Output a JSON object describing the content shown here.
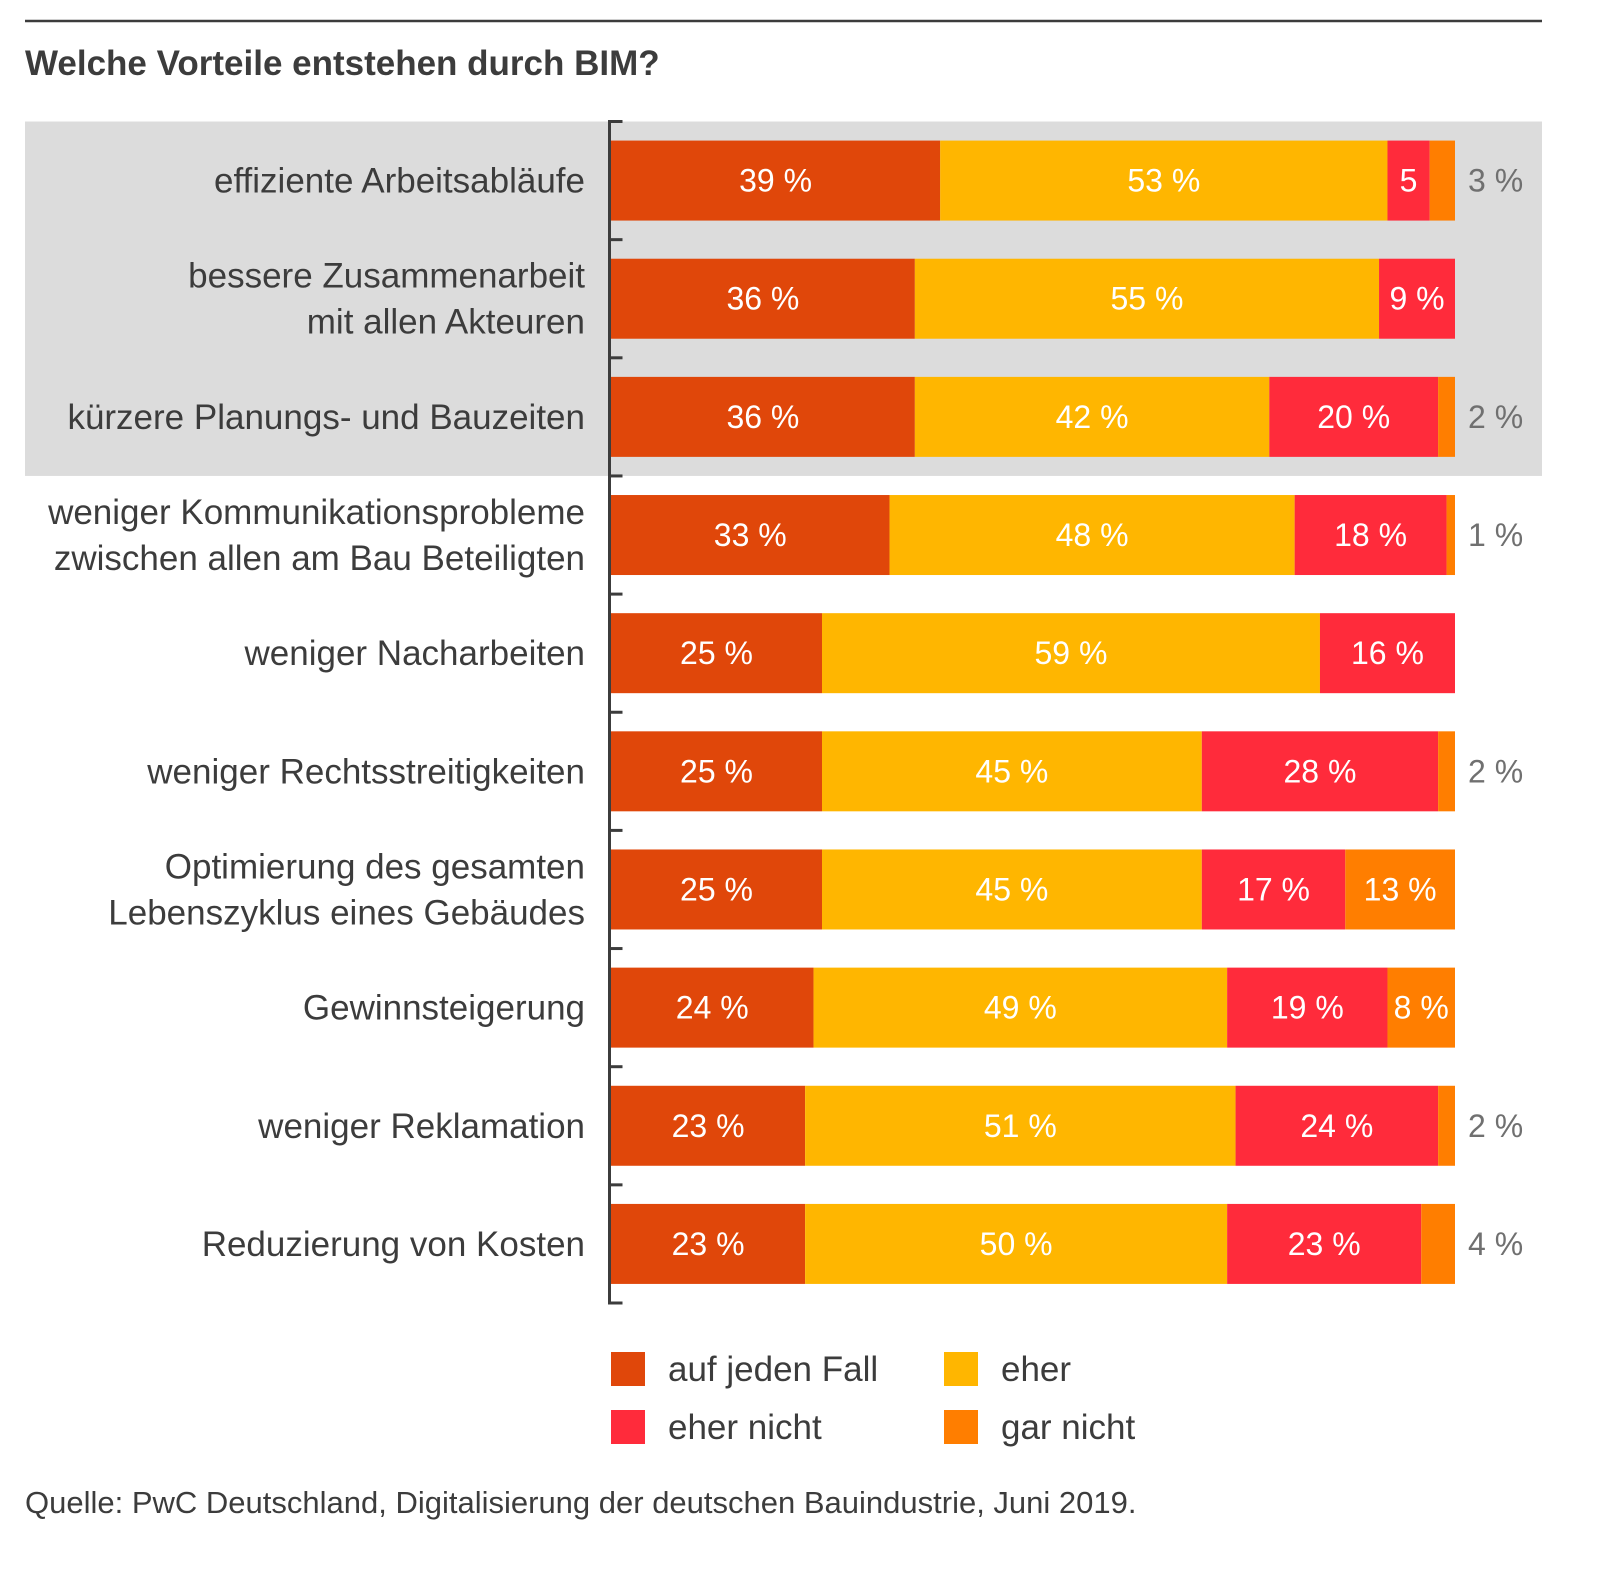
{
  "colors": {
    "highlight_band": "#DCDCDC",
    "axis": "#3C3C3C",
    "outside_label": "#707070"
  },
  "footer": {
    "source": "Quelle: PwC Deutschland, Digitalisierung der deutschen Bauindustrie, Juni 2019."
  },
  "chart_data": {
    "type": "bar",
    "orientation": "horizontal",
    "stacked": true,
    "title": "Welche Vorteile entstehen durch BIM?",
    "xlim": [
      0,
      100
    ],
    "legend": "bottom",
    "highlighted_categories": [
      0,
      1,
      2
    ],
    "categories": [
      [
        "effiziente Arbeitsabläufe"
      ],
      [
        "bessere Zusammenarbeit",
        "mit allen Akteuren"
      ],
      [
        "kürzere Planungs- und Bauzeiten"
      ],
      [
        "weniger Kommunikationsprobleme",
        "zwischen allen am Bau Beteiligten"
      ],
      [
        "weniger Nacharbeiten"
      ],
      [
        "weniger Rechtsstreitigkeiten"
      ],
      [
        "Optimierung des gesamten",
        "Lebenszyklus eines Gebäudes"
      ],
      [
        "Gewinnsteigerung"
      ],
      [
        "weniger Reklamation"
      ],
      [
        "Reduzierung von Kosten"
      ]
    ],
    "series": [
      {
        "name": "auf jeden Fall",
        "color": "#E0470A",
        "values": [
          39,
          36,
          36,
          33,
          25,
          25,
          25,
          24,
          23,
          23
        ],
        "labels": [
          "39 %",
          "36 %",
          "36 %",
          "33 %",
          "25 %",
          "25 %",
          "25 %",
          "24 %",
          "23 %",
          "23 %"
        ]
      },
      {
        "name": "eher",
        "color": "#FFB600",
        "values": [
          53,
          55,
          42,
          48,
          59,
          45,
          45,
          49,
          51,
          50
        ],
        "labels": [
          "53 %",
          "55 %",
          "42 %",
          "48 %",
          "59 %",
          "45 %",
          "45 %",
          "49 %",
          "51 %",
          "50 %"
        ]
      },
      {
        "name": "eher nicht",
        "color": "#FF2B3B",
        "values": [
          5,
          9,
          20,
          18,
          16,
          28,
          17,
          19,
          24,
          23
        ],
        "labels": [
          "5",
          "9 %",
          "20 %",
          "18 %",
          "16 %",
          "28 %",
          "17 %",
          "19 %",
          "24 %",
          "23 %"
        ]
      },
      {
        "name": "gar nicht",
        "color": "#FF7E00",
        "values": [
          3,
          0,
          2,
          1,
          0,
          2,
          13,
          8,
          2,
          4
        ],
        "labels": [
          "3 %",
          null,
          "2 %",
          "1 %",
          null,
          "2 %",
          "13 %",
          "8 %",
          "2 %",
          "4 %"
        ]
      }
    ]
  }
}
